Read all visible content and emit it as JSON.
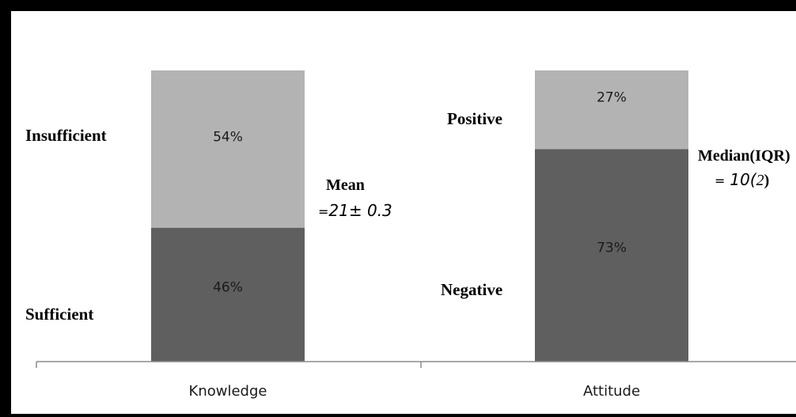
{
  "chart_data": {
    "type": "bar",
    "stacked": true,
    "categories": [
      "Knowledge",
      "Attitude"
    ],
    "bars": [
      {
        "category": "Knowledge",
        "segments": [
          {
            "label": "Sufficient",
            "value": 46,
            "text": "46%",
            "color": "#5f5f5f"
          },
          {
            "label": "Insufficient",
            "value": 54,
            "text": "54%",
            "color": "#b3b3b3"
          }
        ],
        "stat": {
          "head": "Mean",
          "eq": "=",
          "value": "21± 0.3"
        }
      },
      {
        "category": "Attitude",
        "segments": [
          {
            "label": "Negative",
            "value": 73,
            "text": "73%",
            "color": "#5f5f5f"
          },
          {
            "label": "Positive",
            "value": 27,
            "text": "27%",
            "color": "#b3b3b3"
          }
        ],
        "stat": {
          "head": "Median(IQR)",
          "eq": "=",
          "value_num": "10(",
          "value_paren": "2",
          "value_close": ")"
        }
      }
    ],
    "ylim": [
      0,
      100
    ],
    "colors": {
      "lower": "#5f5f5f",
      "upper": "#b3b3b3",
      "axis": "#8c8c8c"
    }
  }
}
